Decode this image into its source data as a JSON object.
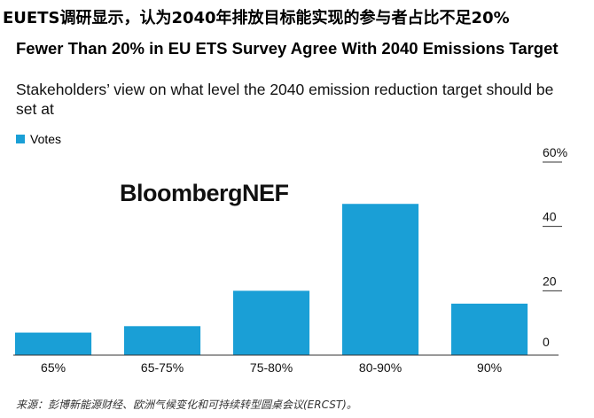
{
  "header": {
    "headline": "EUETS调研显示，认为2040年排放目标能实现的参与者占比不足20%",
    "title": "Fewer Than 20% in EU ETS Survey Agree With 2040 Emissions Target",
    "subtitle": "Stakeholders’ view on what level the 2040 emission reduction target should be set at"
  },
  "legend": {
    "label": "Votes",
    "color": "#1a9fd6"
  },
  "brand": "BloombergNEF",
  "source": "来源：彭博新能源财经、欧洲气候变化和可持续转型圆桌会议(ERCST)。",
  "chart_data": {
    "type": "bar",
    "title": "Fewer Than 20% in EU ETS Survey Agree With 2040 Emissions Target",
    "categories": [
      "65%",
      "65-75%",
      "75-80%",
      "80-90%",
      "90%"
    ],
    "series": [
      {
        "name": "Votes",
        "values": [
          7,
          9,
          20,
          47,
          16
        ]
      }
    ],
    "ylim": [
      0,
      60
    ],
    "yticks": [
      0,
      20,
      40,
      60
    ],
    "ytick_labels": [
      "0",
      "20",
      "40",
      "60%"
    ],
    "xlabel": "",
    "ylabel": "",
    "grid": false,
    "y_axis_side": "right"
  }
}
